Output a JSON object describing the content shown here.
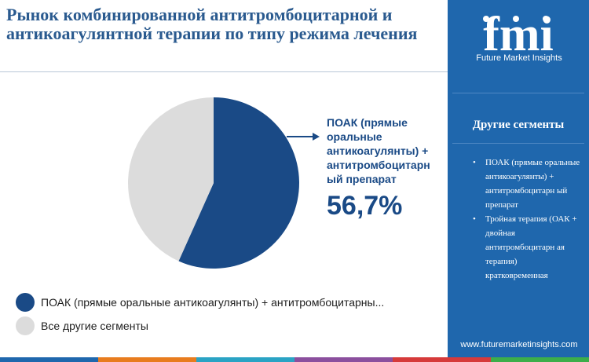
{
  "title": "Рынок комбинированной антитромбоцитарной и антикоагулянтной терапии по типу режима лечения",
  "colors": {
    "primary": "#1a4a86",
    "secondary": "#dcdcdc",
    "panel": "#1f67ad",
    "bar": [
      "#1f67ad",
      "#e87c1e",
      "#2aa3c4",
      "#8b4f9e",
      "#d63a3a",
      "#3cae4a"
    ]
  },
  "chart_data": {
    "type": "pie",
    "slices": [
      {
        "label": "ПОАК (прямые оральные антикоагулянты) + антитромбоцитарный препарат",
        "value": 56.7,
        "color": "#1a4a86"
      },
      {
        "label": "Все другие сегменты",
        "value": 43.3,
        "color": "#dcdcdc"
      }
    ],
    "callout": {
      "label": "ПОАК (прямые оральные антикоагулянты) + антитромбоцитарн ый препарат",
      "value": "56,7%"
    },
    "legend": [
      {
        "label": "ПОАК (прямые оральные антикоагулянты) + антитромбоцитарны...",
        "color": "#1a4a86"
      },
      {
        "label": "Все другие сегменты",
        "color": "#dcdcdc"
      }
    ],
    "legend_position": "bottom-left"
  },
  "sidebar": {
    "logo_text": "fmi",
    "logo_subtitle": "Future Market Insights",
    "segments_title": "Другие сегменты",
    "segments": [
      "ПОАК (прямые оральные антикоагулянты) + антитромбоцитарн ый препарат",
      "Тройная терапия (ОАК + двойная антитромбоцитарн ая терапия) кратковременная"
    ],
    "website": "www.futuremarketinsights.com"
  }
}
